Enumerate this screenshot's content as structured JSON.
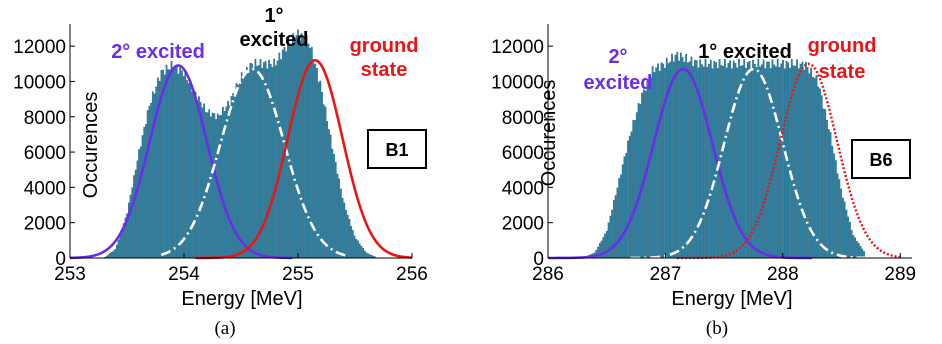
{
  "colors": {
    "histogram": "#2e7fa0",
    "second_excited": "#6a2ee8",
    "first_excited": "#ffffff",
    "ground_state": "#e81616",
    "text_black": "#000000"
  },
  "chart_data": [
    {
      "type": "histogram",
      "panel": "(a)",
      "caption": "(a)",
      "tag": "B1",
      "xlabel": "Energy [MeV]",
      "ylabel": "Occurences",
      "xlim": [
        253,
        256
      ],
      "ylim": [
        0,
        12800
      ],
      "xticks": [
        "253",
        "254",
        "255",
        "256"
      ],
      "yticks": [
        "0",
        "2000",
        "4000",
        "6000",
        "8000",
        "10000",
        "12000"
      ],
      "grid": false,
      "histogram": {
        "x": [
          253.4,
          253.5,
          253.6,
          253.7,
          253.8,
          253.9,
          254.0,
          254.1,
          254.2,
          254.3,
          254.4,
          254.5,
          254.6,
          254.7,
          254.8,
          254.9,
          255.0,
          255.1,
          255.2,
          255.3,
          255.4,
          255.5,
          255.6,
          255.7
        ],
        "y": [
          500,
          2500,
          5800,
          8700,
          10500,
          10900,
          10500,
          9300,
          8300,
          8000,
          8800,
          10200,
          11000,
          11000,
          11000,
          12000,
          12700,
          12200,
          9800,
          6400,
          3200,
          1200,
          300,
          0
        ]
      },
      "series": [
        {
          "name": "2° excited",
          "color": "#6a2ee8",
          "style": "solid",
          "mean": 253.95,
          "sigma": 0.25,
          "amplitude": 10900,
          "x_range": [
            253.0,
            254.95
          ]
        },
        {
          "name": "1° excited",
          "color": "#ffffff",
          "style": "dashdot",
          "mean": 254.6,
          "sigma": 0.28,
          "amplitude": 10700,
          "x_range": [
            253.8,
            255.45
          ]
        },
        {
          "name": "ground state",
          "color": "#e81616",
          "style": "solid",
          "mean": 255.15,
          "sigma": 0.24,
          "amplitude": 11200,
          "x_range": [
            254.1,
            256.0
          ]
        }
      ],
      "annotations": [
        {
          "lines": [
            "2° excited"
          ],
          "color": "#6a2ee8"
        },
        {
          "lines": [
            "1°",
            "excited"
          ],
          "color": "#000000"
        },
        {
          "lines": [
            "ground",
            "state"
          ],
          "color": "#e81616"
        }
      ]
    },
    {
      "type": "histogram",
      "panel": "(b)",
      "caption": "(b)",
      "tag": "B6",
      "xlabel": "Energy [MeV]",
      "ylabel": "Occurences",
      "xlim": [
        286,
        289.1
      ],
      "ylim": [
        0,
        12800
      ],
      "xticks": [
        "286",
        "287",
        "288",
        "289"
      ],
      "yticks": [
        "0",
        "2000",
        "4000",
        "6000",
        "8000",
        "10000",
        "12000"
      ],
      "grid": false,
      "histogram": {
        "x": [
          286.4,
          286.5,
          286.6,
          286.7,
          286.8,
          286.9,
          287.0,
          287.1,
          287.2,
          287.3,
          287.4,
          287.5,
          287.6,
          287.7,
          287.8,
          287.9,
          288.0,
          288.1,
          288.2,
          288.3,
          288.4,
          288.5,
          288.6,
          288.7
        ],
        "y": [
          300,
          1500,
          4200,
          7000,
          9200,
          10700,
          11000,
          11500,
          11200,
          11000,
          11000,
          11000,
          11000,
          11000,
          11000,
          11000,
          11000,
          11000,
          10900,
          10000,
          7200,
          3800,
          1300,
          300
        ]
      },
      "series": [
        {
          "name": "2° excited",
          "color": "#6a2ee8",
          "style": "solid",
          "mean": 287.15,
          "sigma": 0.25,
          "amplitude": 10700,
          "x_range": [
            286.0,
            288.25
          ]
        },
        {
          "name": "1° excited",
          "color": "#ffffff",
          "style": "dashdot",
          "mean": 287.75,
          "sigma": 0.25,
          "amplitude": 10700,
          "x_range": [
            286.7,
            288.8
          ]
        },
        {
          "name": "ground state",
          "color": "#e81616",
          "style": "dotted",
          "mean": 288.22,
          "sigma": 0.24,
          "amplitude": 11000,
          "x_range": [
            287.1,
            289.0
          ]
        }
      ],
      "annotations": [
        {
          "lines": [
            "2°",
            "excited"
          ],
          "color": "#6a2ee8"
        },
        {
          "lines": [
            "1° excited"
          ],
          "color": "#000000"
        },
        {
          "lines": [
            "ground",
            "state"
          ],
          "color": "#e81616"
        }
      ]
    }
  ]
}
